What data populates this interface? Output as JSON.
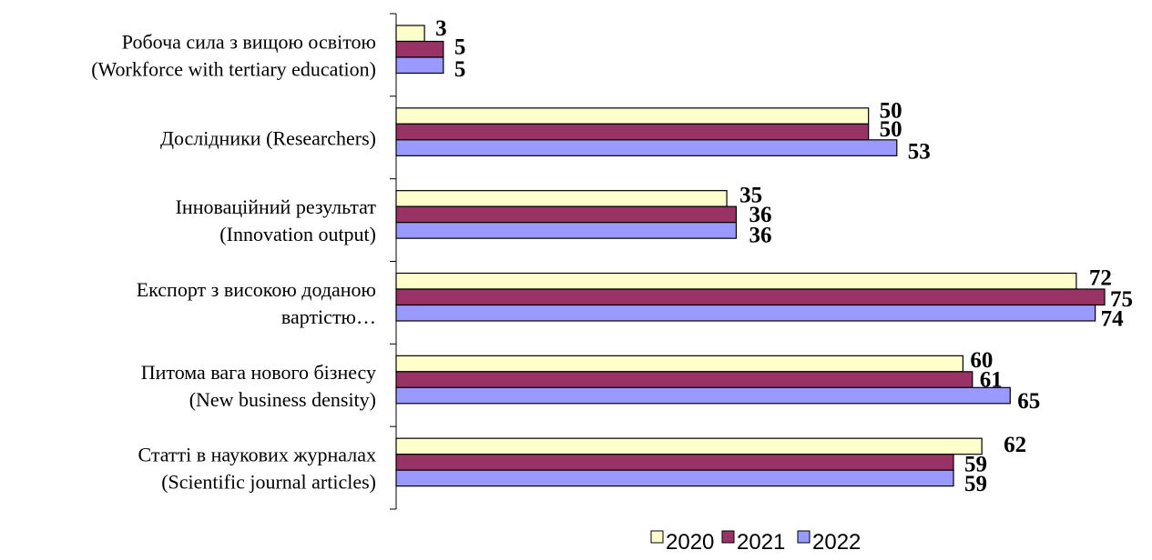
{
  "chart_data": {
    "type": "bar",
    "orientation": "horizontal",
    "categories": [
      [
        "Робоча сила з вищою освітою",
        "(Workforce with tertiary education)"
      ],
      [
        "Дослідники (Researchers)"
      ],
      [
        "Інноваційний результат",
        "(Innovation output)"
      ],
      [
        "Експорт з високою доданою",
        "вартістю…"
      ],
      [
        "Питома вага нового бізнесу",
        "(New business density)"
      ],
      [
        "Статті в наукових журналах",
        "(Scientific journal articles)"
      ]
    ],
    "series": [
      {
        "name": "2020",
        "color": "#ffffcc",
        "values": [
          3,
          50,
          35,
          72,
          60,
          62
        ],
        "labels": [
          "3",
          "50",
          "35",
          "72",
          "60",
          "62"
        ]
      },
      {
        "name": "2021",
        "color": "#993366",
        "values": [
          5,
          50,
          36,
          75,
          61,
          59
        ],
        "labels": [
          "5",
          "50",
          "36",
          "75",
          "61",
          "59"
        ]
      },
      {
        "name": "2022",
        "color": "#9999ff",
        "values": [
          5,
          53,
          36,
          74,
          65,
          59
        ],
        "labels": [
          "5",
          "53",
          "36",
          "74",
          "65",
          "59"
        ]
      }
    ],
    "xlim": [
      0,
      75
    ],
    "grid": false,
    "legend_position": "bottom"
  }
}
